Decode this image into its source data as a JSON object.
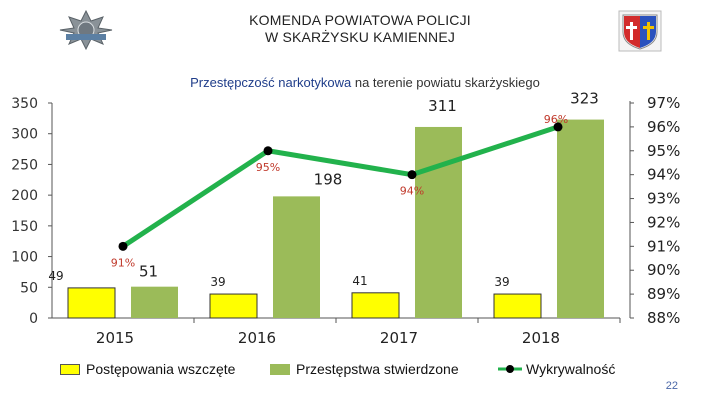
{
  "header": {
    "title_line1": "KOMENDA POWIATOWA POLICJI",
    "title_line2": "W SKARŻYSKU KAMIENNEJ"
  },
  "chart_title_part1": "Przestępczość narkotykowa",
  "chart_title_part2": " na terenie powiatu skarżyskiego",
  "page_number": "22",
  "colors": {
    "yellow": "#ffff00",
    "green": "#9bbb59",
    "line": "#22b24c",
    "dot": "#000000",
    "pct_label": "#c0392b"
  },
  "chart_data": {
    "type": "bar",
    "title": "Przestępczość narkotykowa na terenie powiatu skarżyskiego",
    "categories": [
      "2015",
      "2016",
      "2017",
      "2018"
    ],
    "series": [
      {
        "name": "Postępowania wszczęte",
        "type": "bar",
        "axis": "left",
        "values": [
          49,
          39,
          41,
          39
        ],
        "labels": [
          "49",
          "39",
          "41",
          "39"
        ]
      },
      {
        "name": "Przestępstwa stwierdzone",
        "type": "bar",
        "axis": "left",
        "values": [
          51,
          198,
          311,
          323
        ],
        "labels": [
          "51",
          "198",
          "311",
          "323"
        ]
      },
      {
        "name": "Wykrywalność",
        "type": "line",
        "axis": "right",
        "values": [
          91,
          95,
          94,
          96
        ],
        "labels": [
          "91%",
          "95%",
          "94%",
          "96%"
        ]
      }
    ],
    "left_axis": {
      "min": 0,
      "max": 350,
      "ticks": [
        "0",
        "50",
        "100",
        "150",
        "200",
        "250",
        "300",
        "350"
      ]
    },
    "right_axis": {
      "min": 88,
      "max": 97,
      "ticks": [
        "88%",
        "89%",
        "90%",
        "91%",
        "92%",
        "93%",
        "94%",
        "95%",
        "96%",
        "97%"
      ]
    },
    "legend_position": "bottom"
  }
}
